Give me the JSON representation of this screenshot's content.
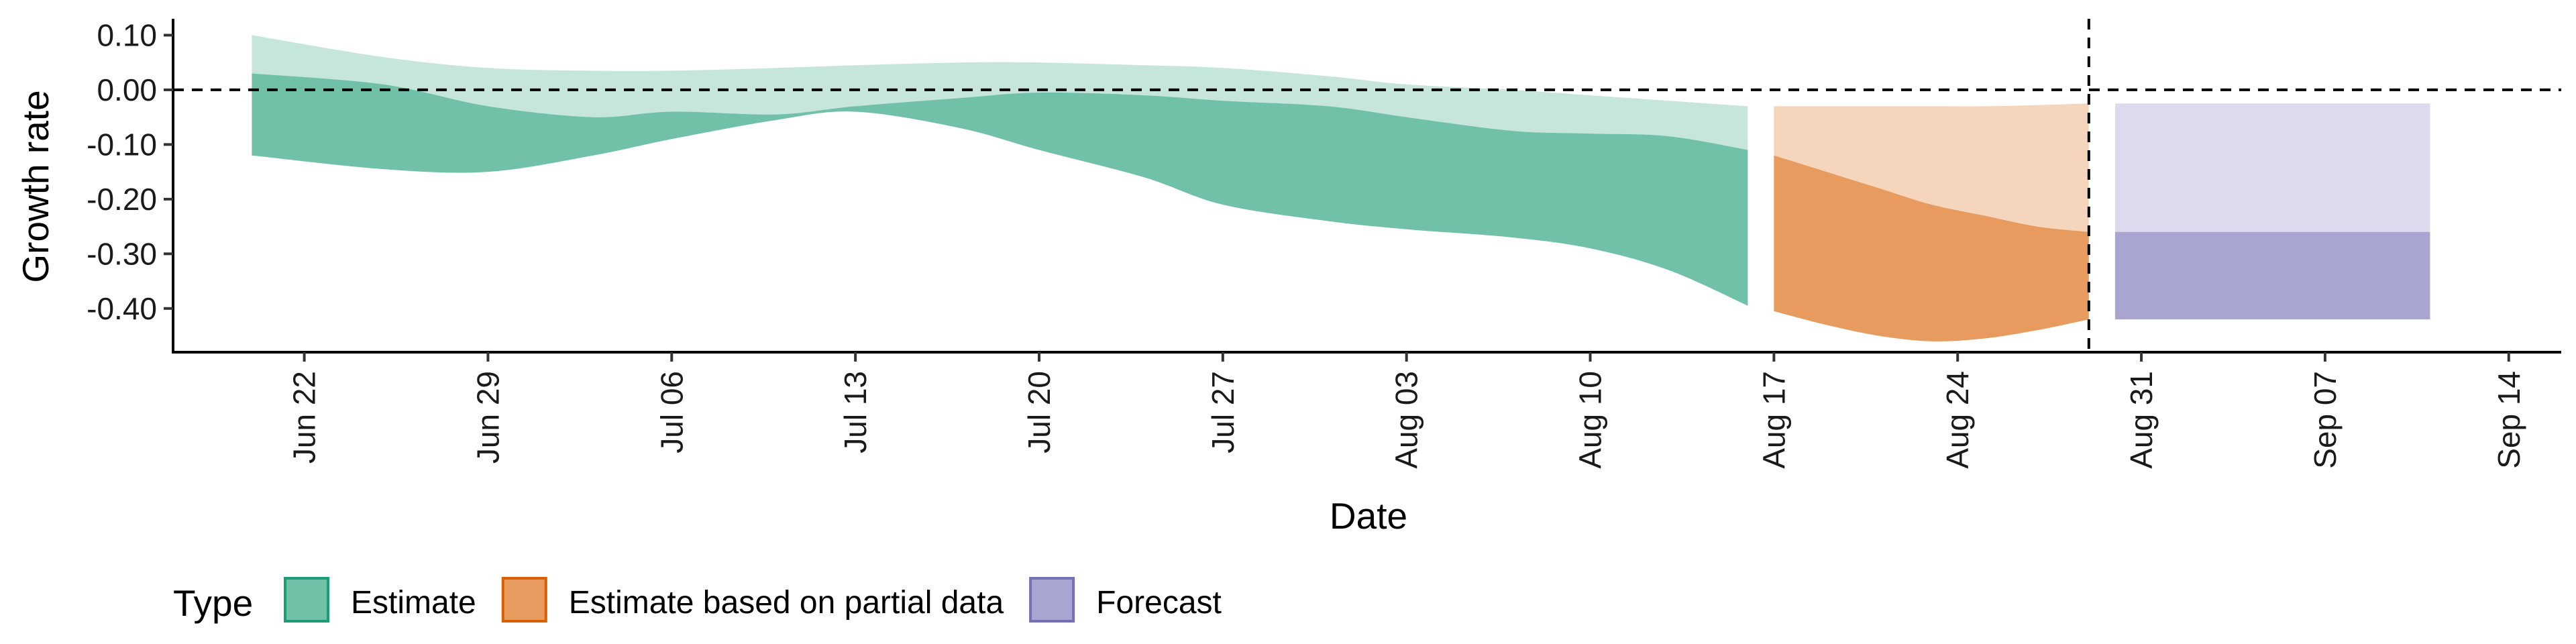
{
  "chart_data": {
    "type": "area",
    "xlabel": "Date",
    "ylabel": "Growth rate",
    "xlim": [
      "2020-06-17",
      "2020-09-16"
    ],
    "ylim": [
      -0.48,
      0.13
    ],
    "x_ticks": [
      "2020-06-22",
      "2020-06-29",
      "2020-07-06",
      "2020-07-13",
      "2020-07-20",
      "2020-07-27",
      "2020-08-03",
      "2020-08-10",
      "2020-08-17",
      "2020-08-24",
      "2020-08-31",
      "2020-09-07",
      "2020-09-14"
    ],
    "x_tick_labels": [
      "Jun 22",
      "Jun 29",
      "Jul 06",
      "Jul 13",
      "Jul 20",
      "Jul 27",
      "Aug 03",
      "Aug 10",
      "Aug 17",
      "Aug 24",
      "Aug 31",
      "Sep 07",
      "Sep 14"
    ],
    "y_ticks": [
      0.1,
      0.0,
      -0.1,
      -0.2,
      -0.3,
      -0.4
    ],
    "y_tick_labels": [
      "0.10",
      "0.00",
      "-0.10",
      "-0.20",
      "-0.30",
      "-0.40"
    ],
    "reference_lines": [
      {
        "axis": "y",
        "value": 0.0,
        "style": "dashed"
      },
      {
        "axis": "x",
        "value": "2020-08-29",
        "style": "dashed"
      }
    ],
    "legend": {
      "title": "Type",
      "placement": "bottom",
      "entries": [
        {
          "label": "Estimate",
          "color": "#71c1a9",
          "border": "#1b9e77"
        },
        {
          "label": "Estimate based on partial data",
          "color": "#e89b5f",
          "border": "#d95f02"
        },
        {
          "label": "Forecast",
          "color": "#a8a5d0",
          "border": "#7570b3"
        }
      ]
    },
    "series": [
      {
        "type": "Estimate",
        "outer_color": "#c6e6dc",
        "inner_color": "#71c1a9",
        "x": [
          "2020-06-20",
          "2020-06-25",
          "2020-06-29",
          "2020-07-03",
          "2020-07-06",
          "2020-07-10",
          "2020-07-13",
          "2020-07-17",
          "2020-07-20",
          "2020-07-24",
          "2020-07-27",
          "2020-07-31",
          "2020-08-03",
          "2020-08-07",
          "2020-08-10",
          "2020-08-13",
          "2020-08-16"
        ],
        "outer_upper": [
          0.1,
          0.06,
          0.04,
          0.035,
          0.035,
          0.04,
          0.045,
          0.05,
          0.05,
          0.045,
          0.04,
          0.025,
          0.01,
          0.0,
          -0.01,
          -0.02,
          -0.03
        ],
        "inner_upper": [
          0.03,
          0.01,
          -0.03,
          -0.05,
          -0.04,
          -0.045,
          -0.03,
          -0.015,
          -0.005,
          -0.01,
          -0.02,
          -0.03,
          -0.05,
          -0.075,
          -0.08,
          -0.085,
          -0.11
        ],
        "inner_lower": [
          -0.12,
          -0.145,
          -0.15,
          -0.12,
          -0.09,
          -0.055,
          -0.04,
          -0.07,
          -0.11,
          -0.16,
          -0.21,
          -0.24,
          -0.255,
          -0.27,
          -0.29,
          -0.33,
          -0.395
        ],
        "outer_lower": [
          -0.12,
          -0.145,
          -0.15,
          -0.12,
          -0.09,
          -0.055,
          -0.04,
          -0.07,
          -0.11,
          -0.16,
          -0.21,
          -0.24,
          -0.255,
          -0.27,
          -0.29,
          -0.33,
          -0.395
        ]
      },
      {
        "type": "Estimate based on partial data",
        "outer_color": "#f5d6bd",
        "inner_color": "#e89b5f",
        "x": [
          "2020-08-17",
          "2020-08-19",
          "2020-08-21",
          "2020-08-23",
          "2020-08-25",
          "2020-08-27",
          "2020-08-29"
        ],
        "outer_upper": [
          -0.03,
          -0.03,
          -0.03,
          -0.03,
          -0.03,
          -0.028,
          -0.025
        ],
        "inner_upper": [
          -0.12,
          -0.15,
          -0.18,
          -0.21,
          -0.23,
          -0.25,
          -0.26
        ],
        "inner_lower": [
          -0.405,
          -0.43,
          -0.45,
          -0.46,
          -0.455,
          -0.44,
          -0.42
        ],
        "outer_lower": [
          -0.405,
          -0.43,
          -0.45,
          -0.46,
          -0.455,
          -0.44,
          -0.42
        ]
      },
      {
        "type": "Forecast",
        "outer_color": "#dcdbee",
        "inner_color": "#a8a5d0",
        "x": [
          "2020-08-30",
          "2020-09-11"
        ],
        "outer_upper": [
          -0.025,
          -0.025
        ],
        "inner_upper": [
          -0.26,
          -0.26
        ],
        "inner_lower": [
          -0.42,
          -0.42
        ],
        "outer_lower": [
          -0.42,
          -0.42
        ]
      }
    ]
  }
}
